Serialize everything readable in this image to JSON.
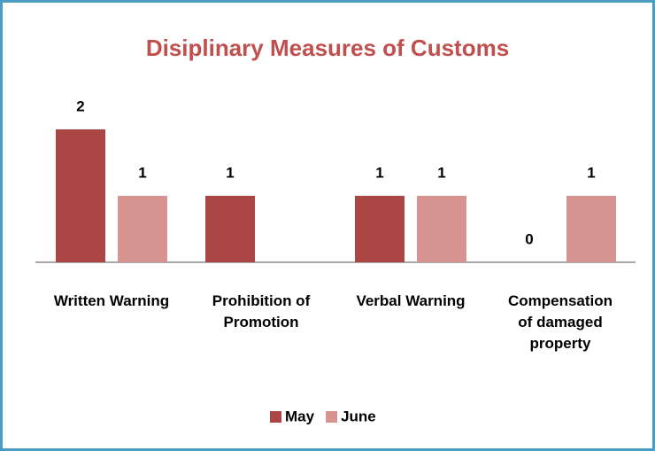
{
  "chart_data": {
    "type": "bar",
    "title": "Disiplinary Measures of Customs",
    "categories": [
      "Written Warning",
      "Prohibition of Promotion",
      "Verbal Warning",
      "Compensation of damaged property"
    ],
    "series": [
      {
        "name": "May",
        "color": "#aa4643",
        "values": [
          2,
          1,
          1,
          0
        ]
      },
      {
        "name": "June",
        "color": "#d6938f",
        "values": [
          1,
          null,
          1,
          1
        ]
      }
    ]
  }
}
